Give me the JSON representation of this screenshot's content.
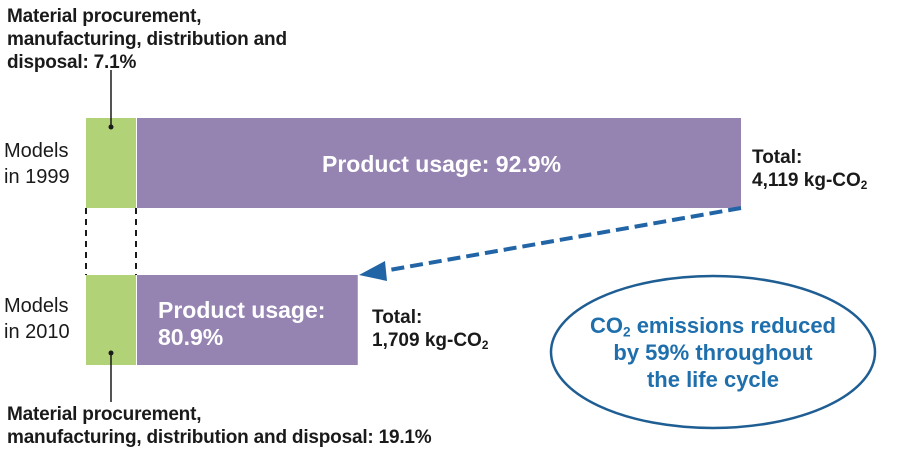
{
  "colors": {
    "material": "#b1d277",
    "usage": "#9584b2",
    "arrow": "#2265a6",
    "ellipse_stroke": "#1f5e93",
    "ellipse_text": "#1f6fad"
  },
  "chart_data": {
    "type": "bar",
    "orientation": "horizontal-stacked",
    "categories": [
      "Models in 1999",
      "Models in 2010"
    ],
    "series": [
      {
        "name": "Material procurement, manufacturing, distribution and disposal",
        "percent": [
          7.1,
          19.1
        ]
      },
      {
        "name": "Product usage",
        "percent": [
          92.9,
          80.9
        ]
      }
    ],
    "totals_kg_co2": [
      4119,
      1709
    ],
    "labels": {
      "top_material": {
        "line1": "Material procurement,",
        "line2": "manufacturing, distribution and",
        "line3": "disposal: 7.1%"
      },
      "bottom_material": {
        "line1": "Material procurement,",
        "line2": "manufacturing, distribution and disposal: 19.1%"
      },
      "row1": {
        "line1": "Models",
        "line2": "in 1999"
      },
      "row2": {
        "line1": "Models",
        "line2": "in 2010"
      },
      "usage1": "Product usage: 92.9%",
      "usage2": {
        "line1": "Product usage:",
        "line2": "80.9%"
      },
      "total1": {
        "line1": "Total:",
        "line2_prefix": "4,119 kg-CO",
        "line2_sub": "2"
      },
      "total2": {
        "line1": "Total:",
        "line2_prefix": "1,709 kg-CO",
        "line2_sub": "2"
      }
    },
    "callout": {
      "line1_prefix": "CO",
      "line1_sub": "2",
      "line1_suffix": " emissions reduced",
      "line2": "by 59% throughout",
      "line3": "the life cycle"
    }
  }
}
